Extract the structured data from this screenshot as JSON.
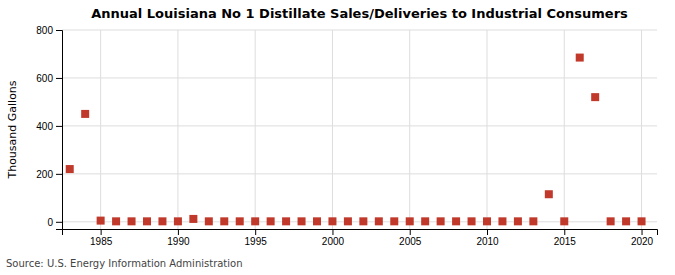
{
  "chart_data": {
    "type": "scatter",
    "title": "Annual Louisiana No 1 Distillate Sales/Deliveries to Industrial Consumers",
    "ylabel": "Thousand Gallons",
    "annotations": [
      "Source: U.S. Energy Information Administration"
    ],
    "x": [
      1983,
      1984,
      1985,
      1986,
      1987,
      1988,
      1989,
      1990,
      1991,
      1992,
      1993,
      1994,
      1995,
      1996,
      1997,
      1998,
      1999,
      2000,
      2001,
      2002,
      2003,
      2004,
      2005,
      2006,
      2007,
      2008,
      2009,
      2010,
      2011,
      2012,
      2013,
      2014,
      2015,
      2016,
      2017,
      2018,
      2019,
      2020
    ],
    "values": [
      220,
      450,
      5,
      2,
      2,
      2,
      2,
      2,
      12,
      2,
      2,
      2,
      2,
      2,
      2,
      2,
      2,
      2,
      2,
      2,
      2,
      2,
      2,
      2,
      2,
      2,
      2,
      2,
      2,
      2,
      2,
      115,
      2,
      685,
      520,
      2,
      2,
      2
    ],
    "color": "#c0392b",
    "marker": "square",
    "xlim": [
      1982.5,
      2021
    ],
    "ylim": [
      -30,
      800
    ],
    "xticks": [
      1985,
      1990,
      1995,
      2000,
      2005,
      2010,
      2015,
      2020
    ],
    "yticks": [
      0,
      200,
      400,
      600,
      800
    ],
    "grid": true
  }
}
